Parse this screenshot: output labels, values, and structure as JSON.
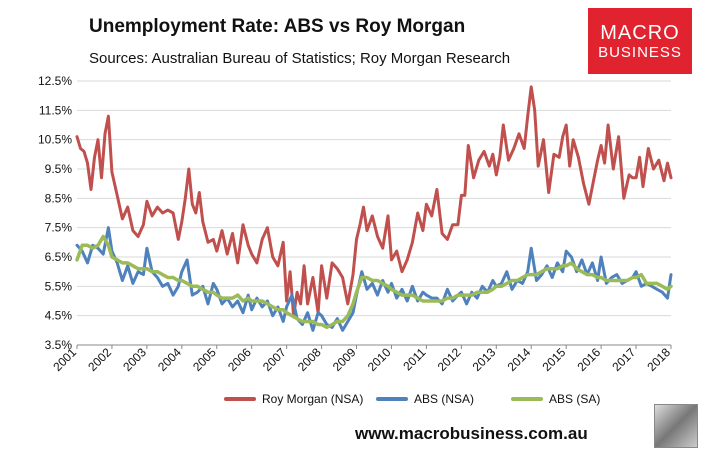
{
  "header": {
    "title": "Unemployment Rate: ABS vs Roy Morgan",
    "subtitle": "Sources: Australian Bureau of Statistics; Roy Morgan Research"
  },
  "logo": {
    "line1": "MACRO",
    "line2": "BUSINESS"
  },
  "footer": {
    "website": "www.macrobusiness.com.au"
  },
  "colors": {
    "roy_morgan": "#c0504d",
    "abs_nsa": "#4f81bd",
    "abs_sa": "#9bbb59",
    "logo_bg": "#e0232e"
  },
  "chart_data": {
    "type": "line",
    "title": "Unemployment Rate: ABS vs Roy Morgan",
    "subtitle": "Sources: Australian Bureau of Statistics; Roy Morgan Research",
    "xlim": [
      2001,
      2018
    ],
    "ylim": [
      3.5,
      12.5
    ],
    "x_ticks": [
      2001,
      2002,
      2003,
      2004,
      2005,
      2006,
      2007,
      2008,
      2009,
      2010,
      2011,
      2012,
      2013,
      2014,
      2015,
      2016,
      2017,
      2018
    ],
    "y_ticks": [
      "3.5%",
      "4.5%",
      "5.5%",
      "6.5%",
      "7.5%",
      "8.5%",
      "9.5%",
      "10.5%",
      "11.5%",
      "12.5%"
    ],
    "y_tick_values": [
      3.5,
      4.5,
      5.5,
      6.5,
      7.5,
      8.5,
      9.5,
      10.5,
      11.5,
      12.5
    ],
    "grid": true,
    "legend_position": "bottom",
    "series": [
      {
        "name": "Roy Morgan (NSA)",
        "x": [
          2001.0,
          2001.1,
          2001.2,
          2001.3,
          2001.4,
          2001.5,
          2001.6,
          2001.7,
          2001.8,
          2001.9,
          2002.0,
          2002.15,
          2002.3,
          2002.45,
          2002.6,
          2002.75,
          2002.9,
          2003.0,
          2003.15,
          2003.3,
          2003.45,
          2003.6,
          2003.75,
          2003.9,
          2004.0,
          2004.1,
          2004.2,
          2004.3,
          2004.4,
          2004.5,
          2004.6,
          2004.75,
          2004.9,
          2005.0,
          2005.15,
          2005.3,
          2005.45,
          2005.6,
          2005.75,
          2005.9,
          2006.0,
          2006.15,
          2006.3,
          2006.45,
          2006.6,
          2006.75,
          2006.9,
          2007.0,
          2007.1,
          2007.2,
          2007.3,
          2007.4,
          2007.5,
          2007.6,
          2007.75,
          2007.9,
          2008.0,
          2008.15,
          2008.3,
          2008.45,
          2008.6,
          2008.75,
          2008.9,
          2009.0,
          2009.1,
          2009.2,
          2009.3,
          2009.45,
          2009.6,
          2009.75,
          2009.9,
          2010.0,
          2010.15,
          2010.3,
          2010.45,
          2010.6,
          2010.75,
          2010.9,
          2011.0,
          2011.15,
          2011.3,
          2011.45,
          2011.6,
          2011.75,
          2011.9,
          2012.0,
          2012.1,
          2012.2,
          2012.35,
          2012.5,
          2012.65,
          2012.8,
          2012.9,
          2013.0,
          2013.1,
          2013.2,
          2013.35,
          2013.5,
          2013.65,
          2013.8,
          2013.9,
          2014.0,
          2014.1,
          2014.2,
          2014.35,
          2014.5,
          2014.65,
          2014.8,
          2014.9,
          2015.0,
          2015.1,
          2015.2,
          2015.35,
          2015.5,
          2015.65,
          2015.8,
          2015.9,
          2016.0,
          2016.1,
          2016.2,
          2016.35,
          2016.5,
          2016.65,
          2016.8,
          2016.9,
          2017.0,
          2017.1,
          2017.2,
          2017.35,
          2017.5,
          2017.65,
          2017.8,
          2017.9,
          2018.0
        ],
        "values": [
          10.6,
          10.2,
          10.1,
          9.7,
          8.8,
          9.9,
          10.5,
          9.2,
          10.7,
          11.3,
          9.4,
          8.6,
          7.8,
          8.2,
          7.4,
          7.2,
          7.6,
          8.4,
          7.9,
          8.2,
          8.0,
          8.1,
          8.0,
          7.1,
          7.7,
          8.5,
          9.5,
          8.3,
          8.0,
          8.7,
          7.7,
          7.0,
          7.1,
          6.7,
          7.4,
          6.6,
          7.3,
          6.3,
          7.6,
          6.9,
          6.6,
          6.3,
          7.1,
          7.5,
          6.5,
          6.2,
          7.0,
          5.0,
          6.0,
          4.5,
          5.3,
          4.9,
          6.2,
          4.9,
          5.8,
          4.6,
          6.2,
          5.1,
          6.3,
          6.1,
          5.8,
          4.9,
          5.9,
          7.1,
          7.6,
          8.2,
          7.4,
          7.9,
          7.2,
          6.8,
          7.9,
          6.4,
          6.7,
          6.0,
          6.4,
          7.0,
          8.0,
          7.4,
          8.3,
          7.9,
          8.8,
          7.3,
          7.1,
          7.6,
          7.6,
          8.6,
          8.6,
          10.3,
          9.2,
          9.8,
          10.1,
          9.6,
          10.0,
          9.3,
          9.9,
          11.0,
          9.8,
          10.2,
          10.7,
          10.2,
          11.3,
          12.3,
          11.5,
          9.6,
          10.5,
          8.7,
          10.0,
          9.9,
          10.6,
          11.0,
          9.6,
          10.5,
          9.9,
          9.0,
          8.3,
          9.2,
          9.8,
          10.3,
          9.7,
          11.0,
          9.5,
          10.6,
          8.5,
          9.3,
          9.2,
          9.2,
          9.9,
          8.9,
          10.2,
          9.5,
          9.8,
          9.1,
          9.7,
          9.2
        ],
        "color": "#c0504d"
      },
      {
        "name": "ABS (NSA)",
        "x": [
          2001.0,
          2001.15,
          2001.3,
          2001.45,
          2001.6,
          2001.75,
          2001.9,
          2002.0,
          2002.15,
          2002.3,
          2002.45,
          2002.6,
          2002.75,
          2002.9,
          2003.0,
          2003.15,
          2003.3,
          2003.45,
          2003.6,
          2003.75,
          2003.9,
          2004.0,
          2004.15,
          2004.3,
          2004.45,
          2004.6,
          2004.75,
          2004.9,
          2005.0,
          2005.15,
          2005.3,
          2005.45,
          2005.6,
          2005.75,
          2005.9,
          2006.0,
          2006.15,
          2006.3,
          2006.45,
          2006.6,
          2006.75,
          2006.9,
          2007.0,
          2007.15,
          2007.3,
          2007.45,
          2007.6,
          2007.75,
          2007.9,
          2008.0,
          2008.15,
          2008.3,
          2008.45,
          2008.6,
          2008.75,
          2008.9,
          2009.0,
          2009.15,
          2009.3,
          2009.45,
          2009.6,
          2009.75,
          2009.9,
          2010.0,
          2010.15,
          2010.3,
          2010.45,
          2010.6,
          2010.75,
          2010.9,
          2011.0,
          2011.15,
          2011.3,
          2011.45,
          2011.6,
          2011.75,
          2011.9,
          2012.0,
          2012.15,
          2012.3,
          2012.45,
          2012.6,
          2012.75,
          2012.9,
          2013.0,
          2013.15,
          2013.3,
          2013.45,
          2013.6,
          2013.75,
          2013.9,
          2014.0,
          2014.15,
          2014.3,
          2014.45,
          2014.6,
          2014.75,
          2014.9,
          2015.0,
          2015.15,
          2015.3,
          2015.45,
          2015.6,
          2015.75,
          2015.9,
          2016.0,
          2016.15,
          2016.3,
          2016.45,
          2016.6,
          2016.75,
          2016.9,
          2017.0,
          2017.15,
          2017.3,
          2017.45,
          2017.6,
          2017.75,
          2017.9,
          2018.0
        ],
        "values": [
          6.9,
          6.7,
          6.3,
          6.9,
          6.8,
          6.6,
          7.5,
          6.7,
          6.3,
          5.7,
          6.2,
          5.6,
          6.0,
          5.9,
          6.8,
          6.0,
          5.8,
          5.5,
          5.6,
          5.2,
          5.5,
          6.0,
          6.4,
          5.2,
          5.3,
          5.5,
          4.9,
          5.6,
          5.4,
          4.9,
          5.1,
          4.8,
          5.0,
          4.6,
          5.2,
          4.7,
          5.1,
          4.8,
          5.0,
          4.5,
          4.8,
          4.3,
          4.8,
          5.2,
          4.4,
          4.2,
          4.6,
          4.0,
          4.6,
          4.5,
          4.2,
          4.1,
          4.4,
          4.0,
          4.3,
          4.6,
          5.2,
          6.0,
          5.4,
          5.6,
          5.2,
          5.7,
          5.3,
          5.6,
          5.1,
          5.4,
          5.0,
          5.5,
          5.0,
          5.3,
          5.2,
          5.1,
          5.1,
          4.9,
          5.4,
          5.0,
          5.2,
          5.3,
          4.9,
          5.3,
          5.1,
          5.5,
          5.3,
          5.7,
          5.5,
          5.6,
          6.0,
          5.4,
          5.7,
          5.6,
          6.0,
          6.8,
          5.7,
          5.9,
          6.2,
          5.8,
          6.3,
          6.0,
          6.7,
          6.5,
          6.0,
          6.4,
          5.9,
          6.3,
          5.7,
          6.5,
          5.6,
          5.8,
          5.9,
          5.6,
          5.7,
          5.8,
          6.0,
          5.5,
          5.6,
          5.5,
          5.4,
          5.3,
          5.1,
          5.9
        ],
        "color": "#4f81bd"
      },
      {
        "name": "ABS (SA)",
        "x": [
          2001.0,
          2001.15,
          2001.3,
          2001.45,
          2001.6,
          2001.75,
          2001.9,
          2002.0,
          2002.15,
          2002.3,
          2002.45,
          2002.6,
          2002.75,
          2002.9,
          2003.0,
          2003.15,
          2003.3,
          2003.45,
          2003.6,
          2003.75,
          2003.9,
          2004.0,
          2004.15,
          2004.3,
          2004.45,
          2004.6,
          2004.75,
          2004.9,
          2005.0,
          2005.15,
          2005.3,
          2005.45,
          2005.6,
          2005.75,
          2005.9,
          2006.0,
          2006.15,
          2006.3,
          2006.45,
          2006.6,
          2006.75,
          2006.9,
          2007.0,
          2007.15,
          2007.3,
          2007.45,
          2007.6,
          2007.75,
          2007.9,
          2008.0,
          2008.15,
          2008.3,
          2008.45,
          2008.6,
          2008.75,
          2008.9,
          2009.0,
          2009.15,
          2009.3,
          2009.45,
          2009.6,
          2009.75,
          2009.9,
          2010.0,
          2010.15,
          2010.3,
          2010.45,
          2010.6,
          2010.75,
          2010.9,
          2011.0,
          2011.15,
          2011.3,
          2011.45,
          2011.6,
          2011.75,
          2011.9,
          2012.0,
          2012.15,
          2012.3,
          2012.45,
          2012.6,
          2012.75,
          2012.9,
          2013.0,
          2013.15,
          2013.3,
          2013.45,
          2013.6,
          2013.75,
          2013.9,
          2014.0,
          2014.15,
          2014.3,
          2014.45,
          2014.6,
          2014.75,
          2014.9,
          2015.0,
          2015.15,
          2015.3,
          2015.45,
          2015.6,
          2015.75,
          2015.9,
          2016.0,
          2016.15,
          2016.3,
          2016.45,
          2016.6,
          2016.75,
          2016.9,
          2017.0,
          2017.15,
          2017.3,
          2017.45,
          2017.6,
          2017.75,
          2017.9,
          2018.0
        ],
        "values": [
          6.4,
          6.9,
          6.9,
          6.8,
          6.9,
          7.2,
          6.9,
          6.5,
          6.4,
          6.3,
          6.3,
          6.2,
          6.1,
          6.1,
          6.1,
          6.0,
          6.0,
          5.9,
          5.8,
          5.8,
          5.7,
          5.7,
          5.6,
          5.5,
          5.5,
          5.4,
          5.3,
          5.3,
          5.2,
          5.1,
          5.1,
          5.1,
          5.2,
          5.0,
          5.1,
          5.0,
          5.0,
          5.0,
          4.9,
          4.8,
          4.7,
          4.7,
          4.6,
          4.5,
          4.4,
          4.3,
          4.3,
          4.3,
          4.2,
          4.2,
          4.1,
          4.2,
          4.3,
          4.3,
          4.5,
          4.9,
          5.3,
          5.8,
          5.8,
          5.7,
          5.7,
          5.6,
          5.5,
          5.4,
          5.3,
          5.2,
          5.2,
          5.2,
          5.1,
          5.0,
          5.0,
          5.0,
          5.0,
          5.0,
          5.1,
          5.1,
          5.2,
          5.2,
          5.2,
          5.2,
          5.3,
          5.3,
          5.3,
          5.4,
          5.5,
          5.5,
          5.6,
          5.7,
          5.7,
          5.8,
          5.9,
          5.9,
          5.9,
          6.0,
          6.1,
          6.1,
          6.1,
          6.2,
          6.2,
          6.3,
          6.1,
          6.0,
          5.9,
          5.9,
          5.8,
          5.8,
          5.7,
          5.7,
          5.7,
          5.7,
          5.7,
          5.8,
          5.8,
          5.9,
          5.6,
          5.6,
          5.6,
          5.5,
          5.4,
          5.5
        ],
        "color": "#9bbb59"
      }
    ]
  }
}
